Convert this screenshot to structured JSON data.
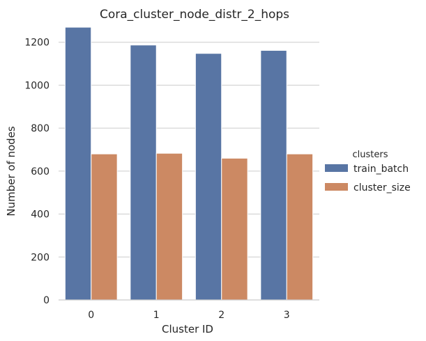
{
  "chart_data": {
    "type": "bar",
    "title": "Cora_cluster_node_distr_2_hops",
    "xlabel": "Cluster ID",
    "ylabel": "Number of nodes",
    "categories": [
      "0",
      "1",
      "2",
      "3"
    ],
    "series": [
      {
        "name": "train_batch",
        "values": [
          1270,
          1187,
          1148,
          1162
        ],
        "color": "#5875a4"
      },
      {
        "name": "cluster_size",
        "values": [
          680,
          683,
          660,
          680
        ],
        "color": "#cc8963"
      }
    ],
    "ylim": [
      0,
      1280
    ],
    "yticks": [
      0,
      200,
      400,
      600,
      800,
      1000,
      1200
    ],
    "grid": "horizontal",
    "legend": {
      "title": "clusters",
      "placement": "right"
    }
  }
}
